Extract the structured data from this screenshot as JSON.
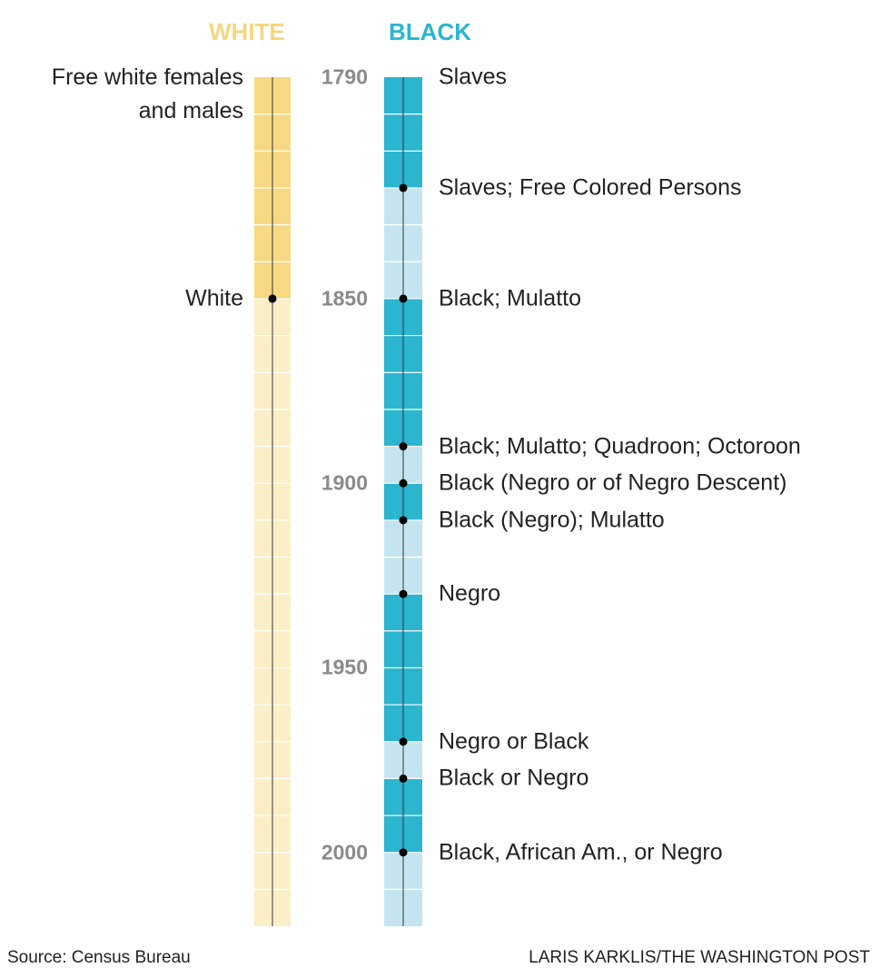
{
  "header": {
    "white": "WHITE",
    "black": "BLACK"
  },
  "range": [
    1790,
    2020
  ],
  "years": [
    1790,
    1850,
    1900,
    1950,
    2000
  ],
  "white": [
    {
      "label": "Free white females and males",
      "year": 1790
    },
    {
      "label": "White",
      "year": 1850
    }
  ],
  "black": [
    {
      "label": "Slaves",
      "year": 1790
    },
    {
      "label": "Slaves; Free Colored Persons",
      "year": 1820
    },
    {
      "label": "Black; Mulatto",
      "year": 1850
    },
    {
      "label": "Black; Mulatto; Quadroon; Octoroon",
      "year": 1890
    },
    {
      "label": "Black (Negro or of Negro Descent)",
      "year": 1900
    },
    {
      "label": "Black (Negro); Mulatto",
      "year": 1910
    },
    {
      "label": "Negro",
      "year": 1930
    },
    {
      "label": "Negro or Black",
      "year": 1970
    },
    {
      "label": "Black or Negro",
      "year": 1980
    },
    {
      "label": "Black, African Am., or Negro",
      "year": 2000
    }
  ],
  "footer": {
    "source": "Source: Census Bureau",
    "credit": "LARIS KARKLIS/THE WASHINGTON POST"
  }
}
